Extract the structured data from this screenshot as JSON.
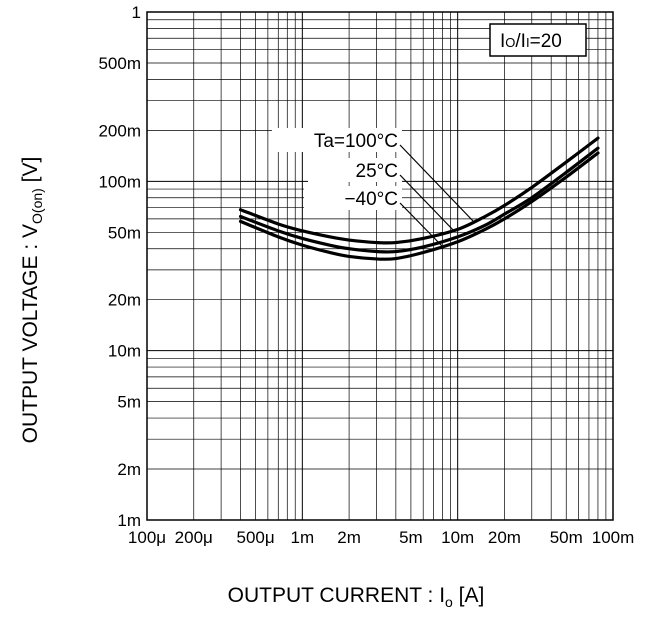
{
  "chart_data": {
    "type": "line",
    "xlabel": "OUTPUT CURRENT : I",
    "xlabel_sub": "o",
    "xlabel_unit": " [A]",
    "ylabel": "OUTPUT VOLTAGE : V",
    "ylabel_sub": "O(on)",
    "ylabel_unit": " [V]",
    "x_scale": "log",
    "y_scale": "log",
    "xlim": [
      0.0001,
      0.1
    ],
    "ylim": [
      0.001,
      1
    ],
    "grid": true,
    "x_ticks": [
      {
        "value": 0.0001,
        "label": "100μ"
      },
      {
        "value": 0.0002,
        "label": "200μ"
      },
      {
        "value": 0.0005,
        "label": "500μ"
      },
      {
        "value": 0.001,
        "label": "1m"
      },
      {
        "value": 0.002,
        "label": "2m"
      },
      {
        "value": 0.005,
        "label": "5m"
      },
      {
        "value": 0.01,
        "label": "10m"
      },
      {
        "value": 0.02,
        "label": "20m"
      },
      {
        "value": 0.05,
        "label": "50m"
      },
      {
        "value": 0.1,
        "label": "100m"
      }
    ],
    "y_ticks": [
      {
        "value": 1,
        "label": "1"
      },
      {
        "value": 0.5,
        "label": "500m"
      },
      {
        "value": 0.2,
        "label": "200m"
      },
      {
        "value": 0.1,
        "label": "100m"
      },
      {
        "value": 0.05,
        "label": "50m"
      },
      {
        "value": 0.02,
        "label": "20m"
      },
      {
        "value": 0.01,
        "label": "10m"
      },
      {
        "value": 0.005,
        "label": "5m"
      },
      {
        "value": 0.002,
        "label": "2m"
      },
      {
        "value": 0.001,
        "label": "1m"
      }
    ],
    "condition_box": {
      "part1": "I",
      "part1_sub": "O",
      "part2": "/I",
      "part2_sub": "I",
      "part3": "=20"
    },
    "series": [
      {
        "name": "Ta=100°C",
        "x": [
          0.0004,
          0.0007,
          0.001,
          0.0015,
          0.002,
          0.003,
          0.004,
          0.006,
          0.01,
          0.015,
          0.02,
          0.03,
          0.05,
          0.08
        ],
        "y": [
          0.068,
          0.056,
          0.051,
          0.047,
          0.045,
          0.0435,
          0.0435,
          0.046,
          0.052,
          0.062,
          0.072,
          0.092,
          0.13,
          0.18
        ]
      },
      {
        "name": "25°C",
        "x": [
          0.0004,
          0.0007,
          0.001,
          0.0015,
          0.002,
          0.003,
          0.004,
          0.006,
          0.01,
          0.015,
          0.02,
          0.03,
          0.05,
          0.08
        ],
        "y": [
          0.062,
          0.051,
          0.046,
          0.042,
          0.04,
          0.0385,
          0.0385,
          0.041,
          0.047,
          0.055,
          0.064,
          0.08,
          0.113,
          0.157
        ]
      },
      {
        "name": "−40°C",
        "x": [
          0.0004,
          0.0007,
          0.001,
          0.0015,
          0.002,
          0.003,
          0.004,
          0.006,
          0.01,
          0.015,
          0.02,
          0.03,
          0.05,
          0.08
        ],
        "y": [
          0.058,
          0.047,
          0.042,
          0.038,
          0.036,
          0.0348,
          0.035,
          0.038,
          0.044,
          0.052,
          0.06,
          0.076,
          0.106,
          0.147
        ]
      }
    ]
  }
}
